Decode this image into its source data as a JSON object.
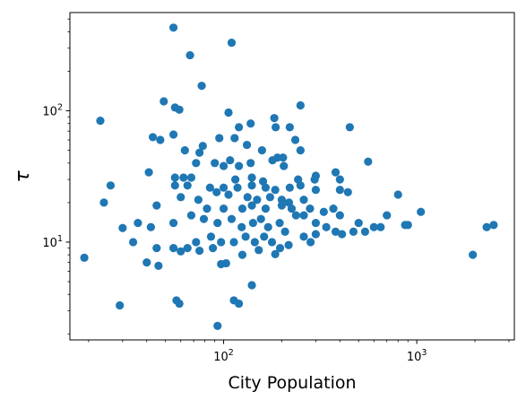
{
  "chart_data": {
    "type": "scatter",
    "xlabel": "City Population",
    "ylabel": "τ",
    "x_scale": "log",
    "y_scale": "log",
    "xlim": [
      16,
      3200
    ],
    "ylim": [
      1.8,
      560
    ],
    "x_ticks": [
      {
        "value": 100,
        "base": "10",
        "exp": "2"
      },
      {
        "value": 1000,
        "base": "10",
        "exp": "3"
      }
    ],
    "y_ticks": [
      {
        "value": 10,
        "label": "10",
        "exp": "1"
      },
      {
        "value": 100,
        "label": "10",
        "exp": "2"
      }
    ],
    "grid": false,
    "marker_color": "#1f77b4",
    "points": [
      [
        55,
        430
      ],
      [
        110,
        330
      ],
      [
        67,
        265
      ],
      [
        77,
        155
      ],
      [
        23,
        84
      ],
      [
        49,
        118
      ],
      [
        56,
        106
      ],
      [
        59,
        102
      ],
      [
        106,
        97
      ],
      [
        183,
        88
      ],
      [
        250,
        110
      ],
      [
        138,
        80
      ],
      [
        120,
        75
      ],
      [
        186,
        75
      ],
      [
        220,
        75
      ],
      [
        450,
        75
      ],
      [
        55,
        66
      ],
      [
        43,
        63
      ],
      [
        47,
        60
      ],
      [
        235,
        60
      ],
      [
        63,
        50
      ],
      [
        75,
        48
      ],
      [
        78,
        54
      ],
      [
        95,
        62
      ],
      [
        114,
        62
      ],
      [
        132,
        55
      ],
      [
        158,
        50
      ],
      [
        190,
        44
      ],
      [
        250,
        50
      ],
      [
        179,
        42
      ],
      [
        203,
        44
      ],
      [
        560,
        41
      ],
      [
        72,
        40
      ],
      [
        108,
        42
      ],
      [
        90,
        40
      ],
      [
        120,
        38
      ],
      [
        138,
        40
      ],
      [
        100,
        38
      ],
      [
        205,
        38
      ],
      [
        296,
        30
      ],
      [
        380,
        34
      ],
      [
        300,
        32
      ],
      [
        26,
        27
      ],
      [
        41,
        34
      ],
      [
        56,
        31
      ],
      [
        62,
        31
      ],
      [
        68,
        31
      ],
      [
        115,
        30
      ],
      [
        140,
        31
      ],
      [
        160,
        29
      ],
      [
        243,
        30
      ],
      [
        400,
        30
      ],
      [
        56,
        27
      ],
      [
        65,
        27
      ],
      [
        85,
        26
      ],
      [
        100,
        26
      ],
      [
        118,
        26
      ],
      [
        140,
        27
      ],
      [
        165,
        26
      ],
      [
        185,
        25
      ],
      [
        220,
        26
      ],
      [
        250,
        27
      ],
      [
        300,
        25
      ],
      [
        400,
        25
      ],
      [
        440,
        24
      ],
      [
        800,
        23
      ],
      [
        24,
        20
      ],
      [
        45,
        19
      ],
      [
        60,
        22
      ],
      [
        74,
        21
      ],
      [
        92,
        24
      ],
      [
        106,
        23
      ],
      [
        133,
        22
      ],
      [
        149,
        21
      ],
      [
        174,
        22
      ],
      [
        200,
        21
      ],
      [
        218,
        20
      ],
      [
        260,
        21
      ],
      [
        82,
        18
      ],
      [
        100,
        18
      ],
      [
        125,
        18
      ],
      [
        140,
        19
      ],
      [
        165,
        18
      ],
      [
        200,
        19
      ],
      [
        225,
        18
      ],
      [
        280,
        18
      ],
      [
        330,
        17
      ],
      [
        370,
        18
      ],
      [
        400,
        16
      ],
      [
        700,
        16
      ],
      [
        1050,
        17
      ],
      [
        36,
        14
      ],
      [
        42,
        13
      ],
      [
        55,
        14
      ],
      [
        68,
        16
      ],
      [
        79,
        15
      ],
      [
        93,
        14
      ],
      [
        110,
        15
      ],
      [
        124,
        13
      ],
      [
        142,
        14
      ],
      [
        156,
        15
      ],
      [
        170,
        13
      ],
      [
        195,
        14
      ],
      [
        208,
        12
      ],
      [
        237,
        16
      ],
      [
        260,
        16
      ],
      [
        300,
        14
      ],
      [
        340,
        13
      ],
      [
        380,
        12
      ],
      [
        500,
        14
      ],
      [
        470,
        12
      ],
      [
        600,
        13
      ],
      [
        650,
        13
      ],
      [
        870,
        13.5
      ],
      [
        900,
        13.5
      ],
      [
        2300,
        13
      ],
      [
        2500,
        13.5
      ],
      [
        30,
        12.8
      ],
      [
        45,
        9
      ],
      [
        55,
        9
      ],
      [
        65,
        9
      ],
      [
        72,
        10
      ],
      [
        86,
        11
      ],
      [
        97,
        10
      ],
      [
        113,
        10
      ],
      [
        130,
        11
      ],
      [
        145,
        10
      ],
      [
        162,
        11
      ],
      [
        178,
        10
      ],
      [
        196,
        9
      ],
      [
        217,
        9.5
      ],
      [
        260,
        11
      ],
      [
        282,
        10
      ],
      [
        300,
        11.5
      ],
      [
        410,
        11.5
      ],
      [
        540,
        12
      ],
      [
        19,
        7.6
      ],
      [
        34,
        10
      ],
      [
        40,
        7
      ],
      [
        46,
        6.6
      ],
      [
        60,
        8.5
      ],
      [
        75,
        8.6
      ],
      [
        88,
        9
      ],
      [
        97,
        6.8
      ],
      [
        103,
        6.9
      ],
      [
        125,
        8
      ],
      [
        152,
        8.7
      ],
      [
        185,
        8.1
      ],
      [
        1950,
        8
      ],
      [
        57,
        3.6
      ],
      [
        59,
        3.4
      ],
      [
        29,
        3.3
      ],
      [
        93,
        2.3
      ],
      [
        113,
        3.6
      ],
      [
        120,
        3.4
      ],
      [
        140,
        4.7
      ]
    ]
  }
}
